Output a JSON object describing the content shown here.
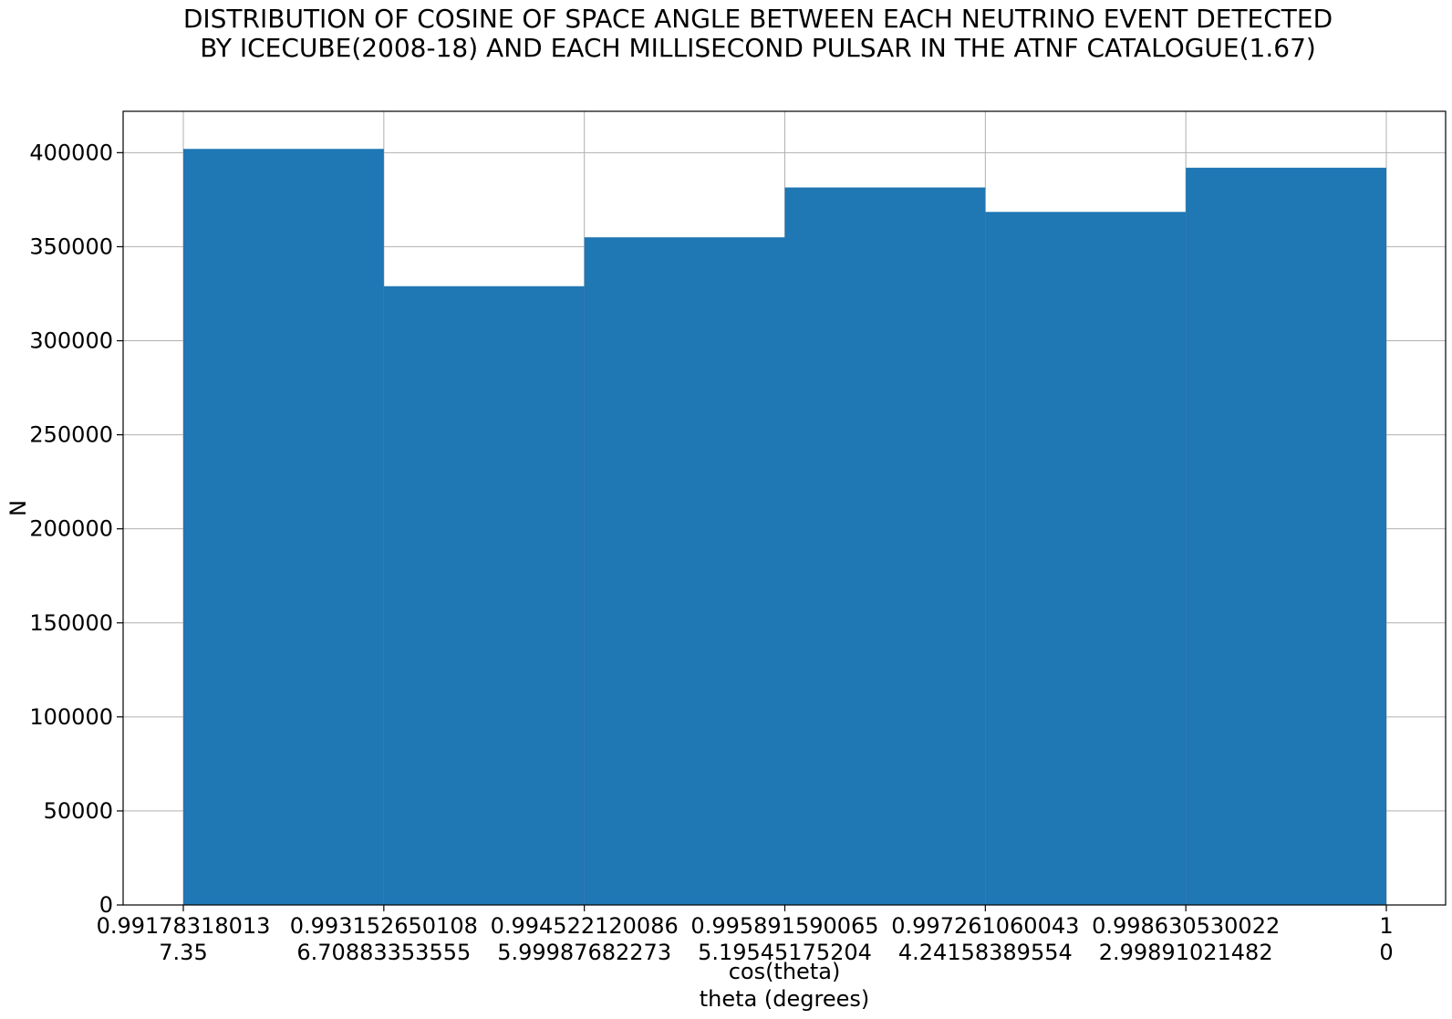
{
  "chart_data": {
    "type": "bar",
    "title_lines": [
      "DISTRIBUTION OF COSINE OF SPACE ANGLE BETWEEN EACH NEUTRINO EVENT DETECTED",
      "BY ICECUBE(2008-18) AND EACH MILLISECOND PULSAR IN THE ATNF CATALOGUE(1.67)"
    ],
    "xlabel_lines": [
      "cos(theta)",
      "theta (degrees)"
    ],
    "ylabel": "N",
    "bin_edges_cos": [
      "0.99178318013",
      "0.993152650108",
      "0.994522120086",
      "0.995891590065",
      "0.997261060043",
      "0.998630530022",
      "1"
    ],
    "bin_edges_theta": [
      "7.35",
      "6.70883353555",
      "5.99987682273",
      "5.19545175204",
      "4.24158389554",
      "2.99891021482",
      "0"
    ],
    "values": [
      402000,
      329000,
      355000,
      381500,
      368500,
      392000
    ],
    "ylim": [
      0,
      422000
    ],
    "yticks": [
      0,
      50000,
      100000,
      150000,
      200000,
      250000,
      300000,
      350000,
      400000
    ],
    "bar_color": "#1f77b4",
    "grid": true
  }
}
